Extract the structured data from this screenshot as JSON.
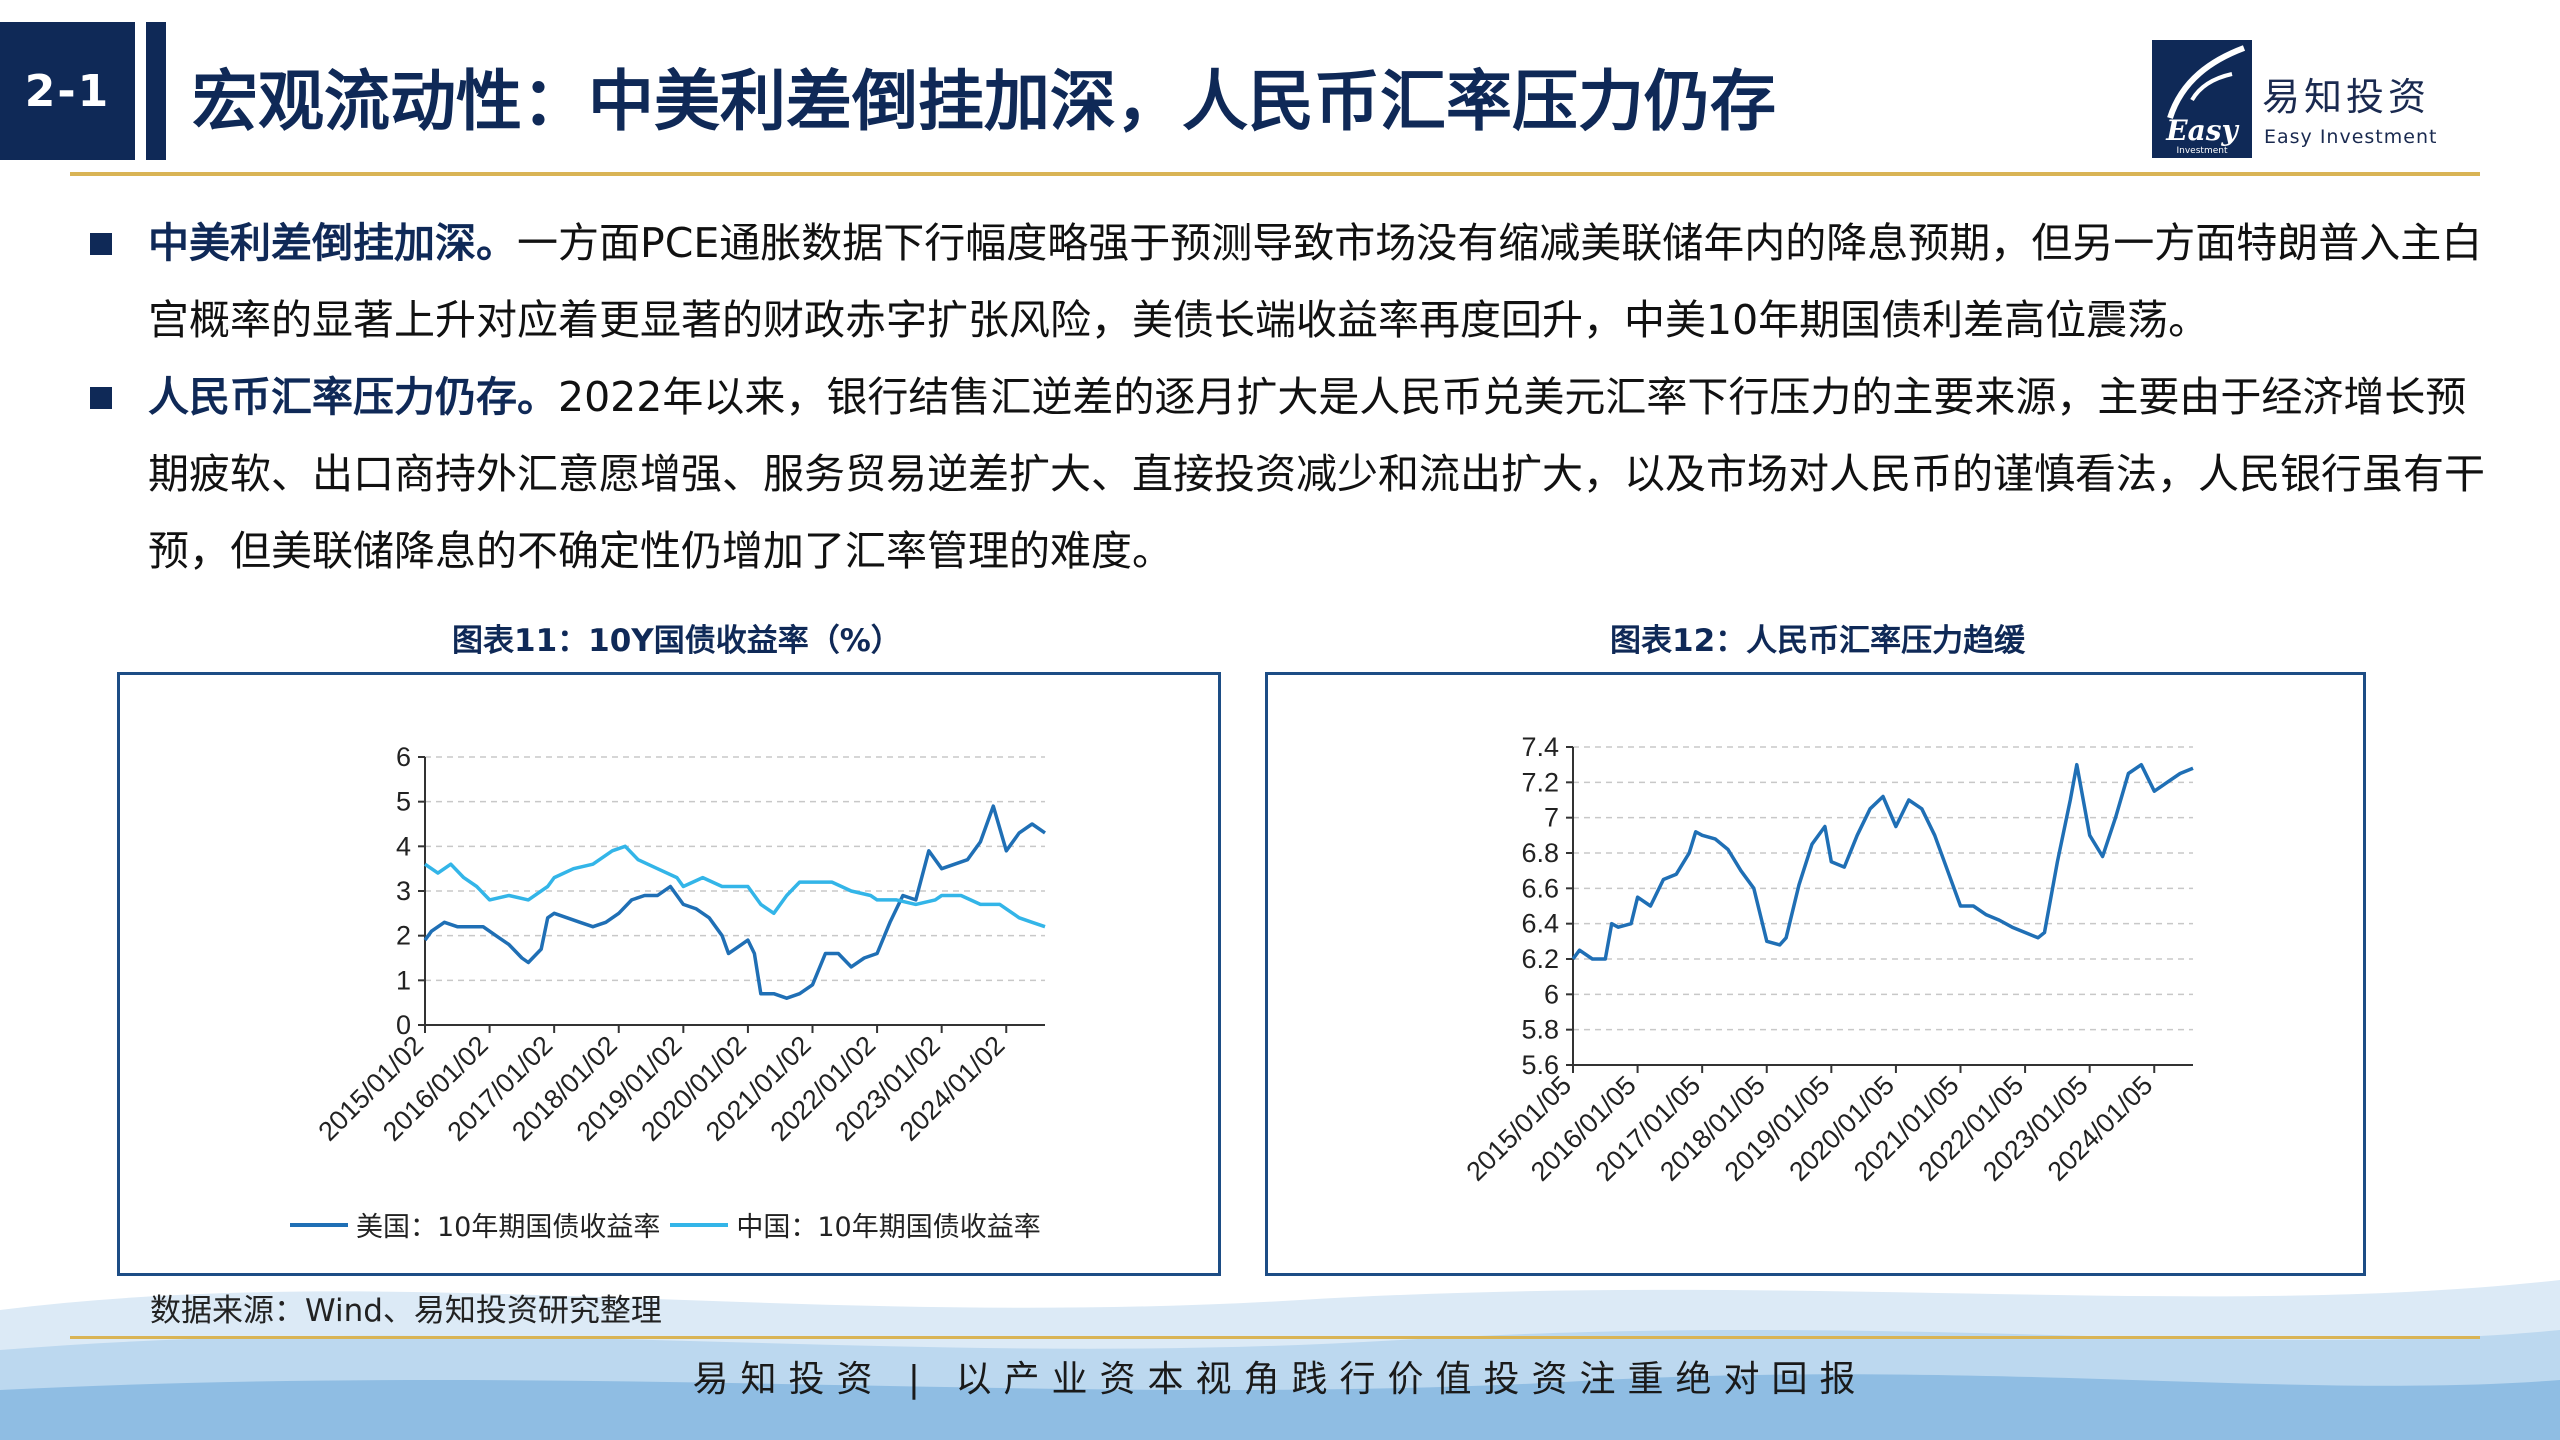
{
  "header": {
    "section_badge": "2-1",
    "title": "宏观流动性：中美利差倒挂加深，人民币汇率压力仍存",
    "logo_cn": "易知投资",
    "logo_en": "Easy Investment",
    "logo_mark_text": "Easy Investment"
  },
  "bullets": [
    {
      "bold": "中美利差倒挂加深。",
      "text": "一方面PCE通胀数据下行幅度略强于预测导致市场没有缩减美联储年内的降息预期，但另一方面特朗普入主白宫概率的显著上升对应着更显著的财政赤字扩张风险，美债长端收益率再度回升，中美10年期国债利差高位震荡。"
    },
    {
      "bold": "人民币汇率压力仍存。",
      "text": "2022年以来，银行结售汇逆差的逐月扩大是人民币兑美元汇率下行压力的主要来源，主要由于经济增长预期疲软、出口商持外汇意愿增强、服务贸易逆差扩大、直接投资减少和流出扩大，以及市场对人民币的谨慎看法，人民银行虽有干预，但美联储降息的不确定性仍增加了汇率管理的难度。"
    }
  ],
  "source_note": "数据来源：Wind、易知投资研究整理",
  "footer": "易知投资 | 以产业资本视角践行价值投资注重绝对回报",
  "colors": {
    "navy": "#0f2957",
    "gold": "#d9b455",
    "us_line": "#1f6fb5",
    "cn_line": "#33b5e8"
  },
  "chart_data": [
    {
      "type": "line",
      "title": "图表11：10Y国债收益率（%）",
      "x_tick_labels": [
        "2015/01/02",
        "2016/01/02",
        "2017/01/02",
        "2018/01/02",
        "2019/01/02",
        "2020/01/02",
        "2021/01/02",
        "2022/01/02",
        "2023/01/02",
        "2024/01/02"
      ],
      "x_range": [
        2015.0,
        2024.6
      ],
      "ylim": [
        0,
        6
      ],
      "y_ticks": [
        0,
        1,
        2,
        3,
        4,
        5,
        6
      ],
      "grid": true,
      "legend": "bottom",
      "series": [
        {
          "name": "美国：10年期国债收益率",
          "color": "#1f6fb5",
          "x": [
            2015.0,
            2015.1,
            2015.3,
            2015.5,
            2015.7,
            2015.9,
            2016.1,
            2016.3,
            2016.5,
            2016.6,
            2016.8,
            2016.9,
            2017.0,
            2017.2,
            2017.4,
            2017.6,
            2017.8,
            2018.0,
            2018.2,
            2018.4,
            2018.6,
            2018.8,
            2018.9,
            2019.0,
            2019.2,
            2019.4,
            2019.6,
            2019.7,
            2019.9,
            2020.0,
            2020.1,
            2020.2,
            2020.4,
            2020.6,
            2020.8,
            2021.0,
            2021.2,
            2021.4,
            2021.6,
            2021.8,
            2022.0,
            2022.2,
            2022.4,
            2022.6,
            2022.8,
            2023.0,
            2023.2,
            2023.4,
            2023.6,
            2023.8,
            2024.0,
            2024.2,
            2024.4,
            2024.6
          ],
          "y": [
            1.9,
            2.1,
            2.3,
            2.2,
            2.2,
            2.2,
            2.0,
            1.8,
            1.5,
            1.4,
            1.7,
            2.4,
            2.5,
            2.4,
            2.3,
            2.2,
            2.3,
            2.5,
            2.8,
            2.9,
            2.9,
            3.1,
            2.9,
            2.7,
            2.6,
            2.4,
            2.0,
            1.6,
            1.8,
            1.9,
            1.6,
            0.7,
            0.7,
            0.6,
            0.7,
            0.9,
            1.6,
            1.6,
            1.3,
            1.5,
            1.6,
            2.3,
            2.9,
            2.8,
            3.9,
            3.5,
            3.6,
            3.7,
            4.1,
            4.9,
            3.9,
            4.3,
            4.5,
            4.3
          ]
        },
        {
          "name": "中国：10年期国债收益率",
          "color": "#33b5e8",
          "x": [
            2015.0,
            2015.2,
            2015.4,
            2015.6,
            2015.8,
            2016.0,
            2016.3,
            2016.6,
            2016.9,
            2017.0,
            2017.3,
            2017.6,
            2017.9,
            2018.1,
            2018.3,
            2018.6,
            2018.9,
            2019.0,
            2019.3,
            2019.6,
            2019.9,
            2020.0,
            2020.2,
            2020.4,
            2020.6,
            2020.8,
            2021.0,
            2021.3,
            2021.6,
            2021.9,
            2022.0,
            2022.3,
            2022.6,
            2022.9,
            2023.0,
            2023.3,
            2023.6,
            2023.9,
            2024.0,
            2024.2,
            2024.4,
            2024.6
          ],
          "y": [
            3.6,
            3.4,
            3.6,
            3.3,
            3.1,
            2.8,
            2.9,
            2.8,
            3.1,
            3.3,
            3.5,
            3.6,
            3.9,
            4.0,
            3.7,
            3.5,
            3.3,
            3.1,
            3.3,
            3.1,
            3.1,
            3.1,
            2.7,
            2.5,
            2.9,
            3.2,
            3.2,
            3.2,
            3.0,
            2.9,
            2.8,
            2.8,
            2.7,
            2.8,
            2.9,
            2.9,
            2.7,
            2.7,
            2.6,
            2.4,
            2.3,
            2.2
          ]
        }
      ]
    },
    {
      "type": "line",
      "title": "图表12：人民币汇率压力趋缓",
      "x_tick_labels": [
        "2015/01/05",
        "2016/01/05",
        "2017/01/05",
        "2018/01/05",
        "2019/01/05",
        "2020/01/05",
        "2021/01/05",
        "2022/01/05",
        "2023/01/05",
        "2024/01/05"
      ],
      "x_range": [
        2015.0,
        2024.6
      ],
      "ylim": [
        5.6,
        7.4
      ],
      "y_ticks": [
        5.6,
        5.8,
        6.0,
        6.2,
        6.4,
        6.6,
        6.8,
        7.0,
        7.2,
        7.4
      ],
      "grid": true,
      "series": [
        {
          "name": "",
          "color": "#1f6fb5",
          "x": [
            2015.0,
            2015.1,
            2015.3,
            2015.5,
            2015.6,
            2015.7,
            2015.9,
            2016.0,
            2016.2,
            2016.4,
            2016.6,
            2016.8,
            2016.9,
            2017.0,
            2017.2,
            2017.4,
            2017.6,
            2017.8,
            2018.0,
            2018.2,
            2018.3,
            2018.5,
            2018.7,
            2018.9,
            2019.0,
            2019.2,
            2019.4,
            2019.6,
            2019.8,
            2020.0,
            2020.2,
            2020.4,
            2020.6,
            2020.8,
            2021.0,
            2021.2,
            2021.4,
            2021.6,
            2021.8,
            2022.0,
            2022.2,
            2022.3,
            2022.5,
            2022.7,
            2022.8,
            2023.0,
            2023.2,
            2023.4,
            2023.6,
            2023.8,
            2024.0,
            2024.2,
            2024.4,
            2024.6
          ],
          "y": [
            6.2,
            6.25,
            6.2,
            6.2,
            6.4,
            6.38,
            6.4,
            6.55,
            6.5,
            6.65,
            6.68,
            6.8,
            6.92,
            6.9,
            6.88,
            6.82,
            6.7,
            6.6,
            6.3,
            6.28,
            6.32,
            6.62,
            6.85,
            6.95,
            6.75,
            6.72,
            6.9,
            7.05,
            7.12,
            6.95,
            7.1,
            7.05,
            6.9,
            6.7,
            6.5,
            6.5,
            6.45,
            6.42,
            6.38,
            6.35,
            6.32,
            6.35,
            6.75,
            7.1,
            7.3,
            6.9,
            6.78,
            7.0,
            7.25,
            7.3,
            7.15,
            7.2,
            7.25,
            7.28
          ]
        }
      ]
    }
  ]
}
